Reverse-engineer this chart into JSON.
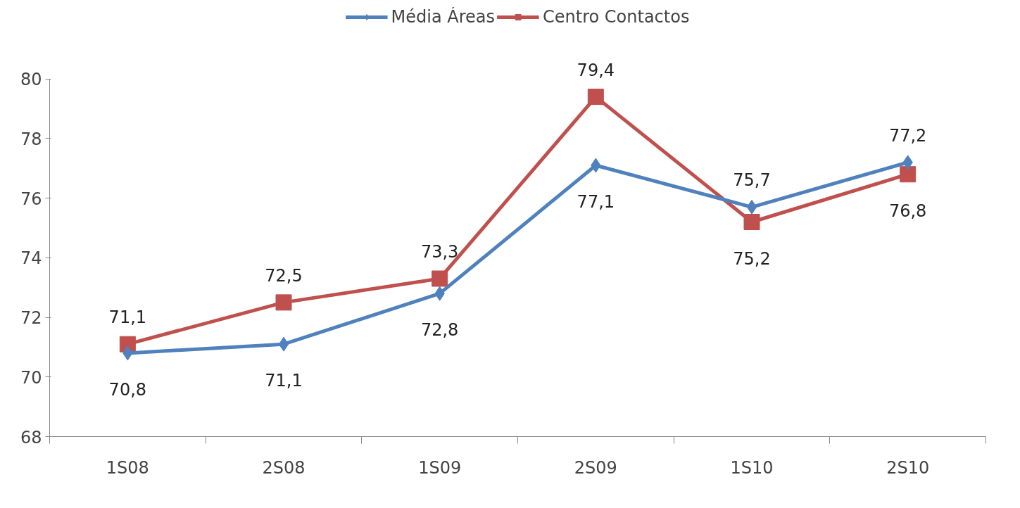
{
  "chart_data": {
    "type": "line",
    "categories": [
      "1S08",
      "2S08",
      "1S09",
      "2S09",
      "1S10",
      "2S10"
    ],
    "series": [
      {
        "name": "Média Áreas",
        "color": "#4f81bd",
        "marker": "diamond",
        "values": [
          70.8,
          71.1,
          72.8,
          77.1,
          75.7,
          77.2
        ],
        "value_labels": [
          "70,8",
          "71,1",
          "72,8",
          "77,1",
          "75,7",
          "77,2"
        ]
      },
      {
        "name": "Centro Contactos",
        "color": "#c0504d",
        "marker": "square",
        "values": [
          71.1,
          72.5,
          73.3,
          79.4,
          75.2,
          76.8
        ],
        "value_labels": [
          "71,1",
          "72,5",
          "73,3",
          "79,4",
          "75,2",
          "76,8"
        ]
      }
    ],
    "ylim": [
      68,
      80
    ],
    "yticks": [
      68,
      70,
      72,
      74,
      76,
      78,
      80
    ],
    "legend": "top",
    "grid": false,
    "line_style": "solid"
  }
}
